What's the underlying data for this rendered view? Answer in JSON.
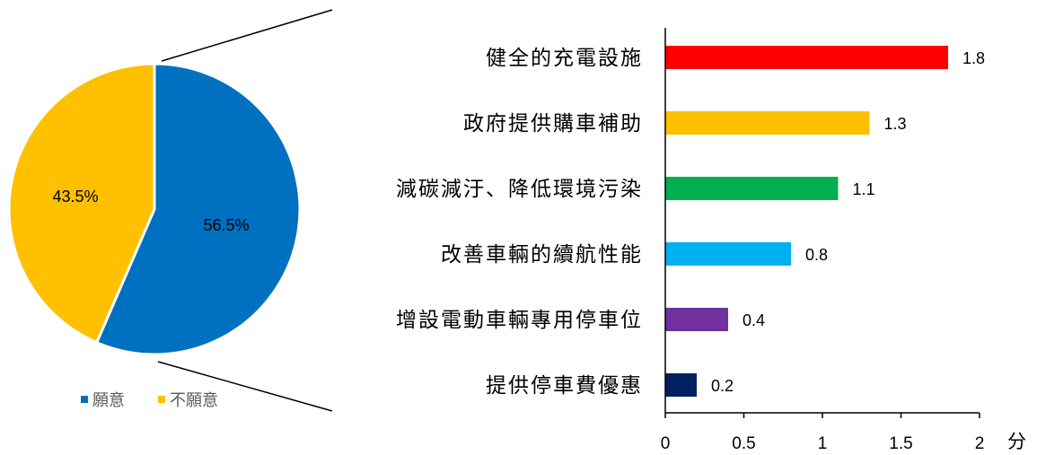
{
  "chart_data": [
    {
      "type": "pie",
      "slices": [
        {
          "name": "願意",
          "value": 56.5,
          "label": "56.5%",
          "color": "#0070C0"
        },
        {
          "name": "不願意",
          "value": 43.5,
          "label": "43.5%",
          "color": "#FFC000"
        }
      ],
      "legend": {
        "placement": "bottom",
        "items": [
          "願意",
          "不願意"
        ]
      }
    },
    {
      "type": "bar",
      "orientation": "horizontal",
      "categories": [
        "健全的充電設施",
        "政府提供購車補助",
        "減碳減汙、降低環境污染",
        "改善車輛的續航性能",
        "增設電動車輛專用停車位",
        "提供停車費優惠"
      ],
      "values": [
        1.8,
        1.3,
        1.1,
        0.8,
        0.4,
        0.2
      ],
      "value_labels": [
        "1.8",
        "1.3",
        "1.1",
        "0.8",
        "0.4",
        "0.2"
      ],
      "colors": [
        "#FF0000",
        "#FFC000",
        "#00B050",
        "#00B0F0",
        "#7030A0",
        "#002060"
      ],
      "xlim": [
        0,
        2
      ],
      "xticks": [
        "0",
        "0.5",
        "1",
        "1.5",
        "2"
      ],
      "xunit": "分",
      "grid": false
    }
  ]
}
